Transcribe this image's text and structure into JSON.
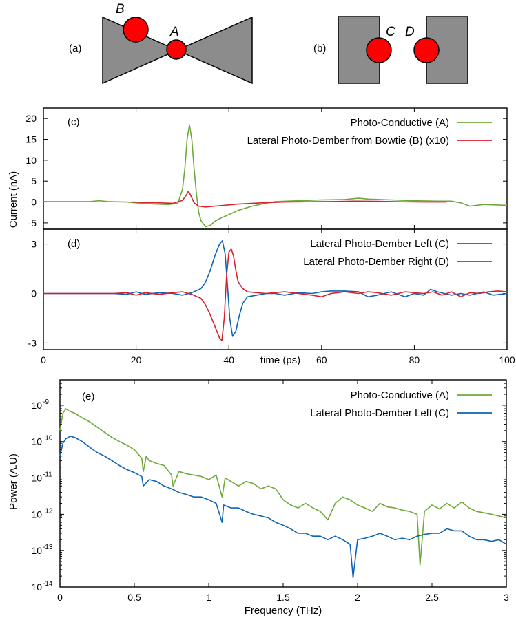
{
  "schematics": {
    "a": {
      "panel_label": "(a)",
      "label_A": "A",
      "label_B": "B"
    },
    "b": {
      "panel_label": "(b)",
      "label_C": "C",
      "label_D": "D"
    },
    "colors": {
      "metal": "#8c8c8c",
      "spot": "#ff0000",
      "outline": "#000000"
    }
  },
  "colors": {
    "green": "#6fa83a",
    "red": "#d8202c",
    "blue": "#0e64b4"
  },
  "chart_data": [
    {
      "panel": "(c)",
      "type": "line",
      "title": "",
      "xlabel": "",
      "ylabel": "Current (nA)",
      "xlim": [
        0,
        100
      ],
      "ylim": [
        -6.5,
        22.5
      ],
      "yticks": [
        -5,
        0,
        5,
        10,
        15,
        20
      ],
      "x_ticks": [
        0,
        20,
        40,
        60,
        80,
        100
      ],
      "series": [
        {
          "name": "Photo-Conductive (A)",
          "color": "#6fa83a",
          "x": [
            0,
            5,
            10,
            12,
            14,
            18,
            20,
            24,
            27,
            29,
            30,
            30.5,
            31,
            31.5,
            32,
            32.5,
            33,
            33.5,
            34,
            35,
            36,
            37,
            38,
            40,
            42,
            45,
            48,
            50,
            55,
            60,
            65,
            68,
            70,
            75,
            80,
            85,
            88,
            90,
            92,
            95,
            100
          ],
          "y": [
            0.1,
            0.1,
            0.1,
            0.3,
            0.1,
            0,
            -0.2,
            -0.5,
            -0.6,
            -0.3,
            3,
            8,
            15,
            18.5,
            15,
            8,
            2,
            -2.5,
            -4.5,
            -5.9,
            -5.6,
            -4.6,
            -4,
            -3,
            -2,
            -1,
            -0.3,
            0.1,
            0.3,
            0.5,
            0.6,
            0.9,
            0.7,
            0.5,
            0.3,
            0.2,
            0.2,
            -0.2,
            -1,
            -0.6,
            -0.8
          ]
        },
        {
          "name": "Lateral Photo-Dember from Bowtie (B) (x10)",
          "color": "#d8202c",
          "x": [
            19,
            22,
            25,
            28,
            30,
            30.8,
            31.3,
            31.8,
            32.5,
            33.5,
            35,
            38,
            42,
            47,
            52,
            57,
            62,
            67,
            72,
            77,
            82,
            87
          ],
          "y": [
            0,
            -0.1,
            -0.2,
            -0.3,
            0.4,
            1.6,
            2.6,
            1.5,
            -0.2,
            -1,
            -1.2,
            -0.9,
            -0.5,
            -0.2,
            0,
            0.05,
            0.1,
            0.2,
            0.15,
            0.05,
            0,
            0
          ]
        }
      ]
    },
    {
      "panel": "(d)",
      "type": "line",
      "title": "",
      "xlabel": "time (ps)",
      "ylabel": "",
      "xlim": [
        0,
        100
      ],
      "ylim": [
        -3.4,
        3.9
      ],
      "yticks": [
        -3,
        0,
        3
      ],
      "x_ticks": [
        0,
        20,
        40,
        60,
        80,
        100
      ],
      "series": [
        {
          "name": "Lateral Photo-Dember Left (C)",
          "color": "#0e64b4",
          "x": [
            0,
            10,
            15,
            18,
            20,
            22,
            25,
            28,
            30,
            32,
            34,
            35,
            36,
            37,
            38,
            38.6,
            39.2,
            39.7,
            40.2,
            40.8,
            41.5,
            42.2,
            43,
            44,
            46,
            48,
            50,
            52,
            55,
            58,
            60,
            62,
            65,
            68,
            70,
            72,
            75,
            78,
            80,
            82,
            83.5,
            85,
            88,
            90,
            92,
            95,
            97,
            100
          ],
          "y": [
            0,
            0,
            0,
            -0.05,
            0.1,
            -0.05,
            0.05,
            0,
            -0.1,
            0.05,
            0.3,
            0.7,
            1.4,
            2.3,
            3,
            3.2,
            2.4,
            0.5,
            -1.5,
            -2.6,
            -2.3,
            -1.4,
            -0.6,
            -0.2,
            -0.1,
            0,
            0,
            -0.1,
            0.05,
            0,
            0.1,
            0.15,
            0.15,
            0.1,
            -0.2,
            -0.1,
            0.1,
            -0.2,
            0,
            -0.1,
            0.25,
            0.1,
            -0.1,
            0,
            -0.1,
            0.1,
            -0.1,
            0
          ]
        },
        {
          "name": "Lateral Photo-Dember Right (D)",
          "color": "#d8202c",
          "x": [
            0,
            10,
            15,
            18,
            20,
            22,
            25,
            28,
            30,
            32,
            34,
            35,
            36,
            37,
            38,
            38.5,
            39,
            39.5,
            40,
            40.5,
            41,
            41.5,
            42,
            43,
            44,
            46,
            48,
            50,
            52,
            55,
            58,
            60,
            62,
            65,
            68,
            70,
            72,
            75,
            78,
            80,
            82,
            84,
            86,
            88,
            90,
            92,
            94,
            96,
            98,
            100
          ],
          "y": [
            0,
            0,
            0,
            0.05,
            -0.1,
            0.05,
            -0.05,
            0.05,
            0.1,
            -0.05,
            -0.3,
            -0.7,
            -1.3,
            -2,
            -2.7,
            -2.85,
            -1.5,
            1,
            2.5,
            2.7,
            2.3,
            1.4,
            0.7,
            0.3,
            0.1,
            0.05,
            0,
            0.05,
            0.1,
            0,
            -0.1,
            -0.2,
            0,
            0.1,
            0,
            0.1,
            0.05,
            -0.1,
            0.1,
            0.05,
            0,
            0.1,
            -0.1,
            0.1,
            -0.2,
            0.05,
            0,
            0.1,
            0.15,
            0.1
          ]
        }
      ]
    },
    {
      "panel": "(e)",
      "type": "line",
      "log_y": true,
      "title": "",
      "xlabel": "Frequency (THz)",
      "ylabel": "Power (A.U)",
      "xlim": [
        0,
        3
      ],
      "ylim": [
        1e-14,
        5e-09
      ],
      "x_ticks": [
        0,
        0.5,
        1,
        1.5,
        2,
        2.5,
        3
      ],
      "x_tick_labels": [
        "0",
        "0.5",
        "1",
        "1.5",
        "2",
        "2.5",
        "3"
      ],
      "y_ticks": [
        -14,
        -13,
        -12,
        -11,
        -10,
        -9
      ],
      "y_tick_mantissa": "10",
      "series": [
        {
          "name": "Photo-Conductive (A)",
          "color": "#6fa83a",
          "x": [
            0,
            0.02,
            0.04,
            0.06,
            0.1,
            0.15,
            0.2,
            0.25,
            0.3,
            0.35,
            0.4,
            0.45,
            0.5,
            0.55,
            0.56,
            0.58,
            0.6,
            0.65,
            0.7,
            0.75,
            0.76,
            0.8,
            0.85,
            0.9,
            0.95,
            1,
            1.05,
            1.09,
            1.11,
            1.15,
            1.2,
            1.25,
            1.3,
            1.35,
            1.4,
            1.45,
            1.5,
            1.55,
            1.6,
            1.65,
            1.7,
            1.75,
            1.8,
            1.85,
            1.9,
            1.95,
            2,
            2.05,
            2.1,
            2.15,
            2.2,
            2.25,
            2.3,
            2.35,
            2.4,
            2.42,
            2.45,
            2.5,
            2.55,
            2.6,
            2.65,
            2.7,
            2.75,
            2.8,
            2.85,
            2.9,
            2.95,
            3
          ],
          "y": [
            2e-10,
            6e-10,
            8e-10,
            7e-10,
            6e-10,
            4.5e-10,
            3.5e-10,
            2.5e-10,
            1.8e-10,
            1.3e-10,
            1e-10,
            8e-11,
            6e-11,
            3.5e-11,
            1.5e-11,
            4e-11,
            3e-11,
            2.5e-11,
            2.2e-11,
            1.2e-11,
            6e-12,
            1.5e-11,
            1.3e-11,
            1.2e-11,
            1.1e-11,
            9e-12,
            1.2e-11,
            3e-12,
            1e-11,
            8e-12,
            6e-12,
            8e-12,
            7e-12,
            5e-12,
            6e-12,
            5e-12,
            2.5e-12,
            1.8e-12,
            1.5e-12,
            2e-12,
            1.5e-12,
            1.2e-12,
            7e-13,
            2e-12,
            3e-12,
            2.5e-12,
            1.8e-12,
            1.5e-12,
            1.2e-12,
            2e-12,
            1.6e-12,
            1.5e-12,
            1.3e-12,
            1.2e-12,
            1e-12,
            4e-14,
            1.2e-12,
            1.8e-12,
            1.4e-12,
            2e-12,
            1.5e-12,
            2.2e-12,
            1.5e-12,
            1.2e-12,
            1.1e-12,
            1e-12,
            9e-13,
            8e-13
          ]
        },
        {
          "name": "Lateral Photo-Dember Left (C)",
          "color": "#0e64b4",
          "x": [
            0,
            0.02,
            0.04,
            0.07,
            0.1,
            0.15,
            0.2,
            0.25,
            0.3,
            0.35,
            0.4,
            0.45,
            0.5,
            0.55,
            0.56,
            0.6,
            0.65,
            0.7,
            0.75,
            0.8,
            0.85,
            0.9,
            0.95,
            1,
            1.05,
            1.09,
            1.1,
            1.15,
            1.2,
            1.25,
            1.3,
            1.35,
            1.4,
            1.45,
            1.5,
            1.55,
            1.6,
            1.65,
            1.7,
            1.75,
            1.8,
            1.85,
            1.9,
            1.95,
            1.97,
            2,
            2.05,
            2.1,
            2.15,
            2.2,
            2.25,
            2.3,
            2.35,
            2.4,
            2.45,
            2.5,
            2.55,
            2.6,
            2.65,
            2.7,
            2.75,
            2.8,
            2.85,
            2.9,
            2.95,
            3
          ],
          "y": [
            4e-11,
            9e-11,
            1.2e-10,
            1.4e-10,
            1.3e-10,
            1e-10,
            7e-11,
            5e-11,
            4e-11,
            3e-11,
            2.2e-11,
            1.7e-11,
            1.4e-11,
            1.1e-11,
            6e-12,
            9e-12,
            8e-12,
            6e-12,
            5e-12,
            4e-12,
            3.5e-12,
            3e-12,
            3e-12,
            2.5e-12,
            2e-12,
            6e-13,
            1.8e-12,
            1.5e-12,
            1.5e-12,
            1.2e-12,
            1e-12,
            9e-13,
            8e-13,
            6e-13,
            5e-13,
            4e-13,
            3e-13,
            3e-13,
            2.5e-13,
            2.5e-13,
            2e-13,
            2.5e-13,
            2e-13,
            1.5e-13,
            1.8e-14,
            2e-13,
            2.2e-13,
            2.5e-13,
            3e-13,
            2.5e-13,
            2e-13,
            2.2e-13,
            2e-13,
            2.5e-13,
            2.8e-13,
            3e-13,
            3e-13,
            4e-13,
            3.5e-13,
            3.5e-13,
            2.5e-13,
            2e-13,
            2e-13,
            1.8e-13,
            2e-13,
            1.5e-13
          ]
        }
      ]
    }
  ],
  "labels": {
    "panel_c": "(c)",
    "panel_d": "(d)",
    "panel_e": "(e)"
  }
}
